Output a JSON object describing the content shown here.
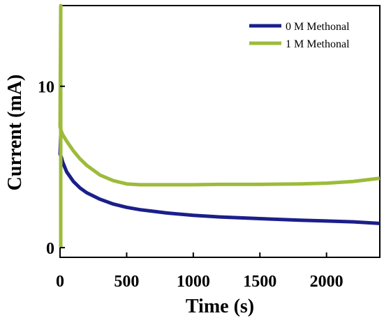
{
  "chart_data": {
    "type": "line",
    "title": "",
    "xlabel": "Time (s)",
    "ylabel": "Current (mA)",
    "xlim": [
      0,
      2400
    ],
    "ylim": [
      -0.6,
      15
    ],
    "x_ticks": [
      0,
      500,
      1000,
      1500,
      2000
    ],
    "y_ticks": [
      0,
      10
    ],
    "grid": false,
    "legend_position": "top-right",
    "series": [
      {
        "name": "0 M Methonal",
        "color": "#1b1f8a",
        "x": [
          0,
          10,
          20,
          50,
          100,
          150,
          200,
          300,
          400,
          500,
          600,
          700,
          800,
          1000,
          1200,
          1500,
          1800,
          2000,
          2200,
          2400
        ],
        "y": [
          5.8,
          5.6,
          5.3,
          4.7,
          4.1,
          3.7,
          3.4,
          3.0,
          2.7,
          2.5,
          2.35,
          2.25,
          2.15,
          2.0,
          1.9,
          1.8,
          1.7,
          1.65,
          1.6,
          1.5
        ]
      },
      {
        "name": "1 M Methonal",
        "color": "#9dbb3a",
        "x": [
          0,
          10,
          20,
          50,
          100,
          150,
          200,
          300,
          400,
          500,
          600,
          700,
          800,
          1000,
          1200,
          1500,
          1800,
          2000,
          2200,
          2400
        ],
        "y": [
          7.5,
          7.2,
          7.0,
          6.6,
          6.0,
          5.5,
          5.1,
          4.5,
          4.15,
          3.95,
          3.9,
          3.9,
          3.9,
          3.9,
          3.92,
          3.92,
          3.95,
          4.0,
          4.1,
          4.3
        ]
      }
    ]
  }
}
